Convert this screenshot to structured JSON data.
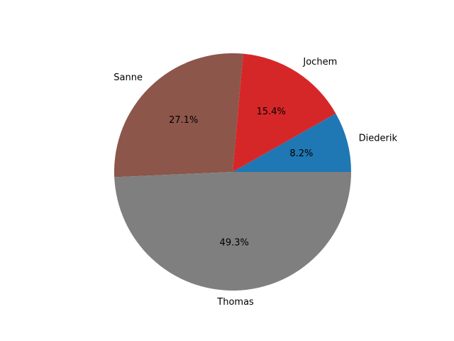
{
  "chart_data": {
    "type": "pie",
    "labels": [
      "Diederik",
      "Jochem",
      "Sanne",
      "Thomas"
    ],
    "values": [
      8.2,
      15.4,
      27.1,
      49.3
    ],
    "percent_labels": [
      "8.2%",
      "15.4%",
      "27.1%",
      "49.3%"
    ],
    "colors": [
      "#1f77b4",
      "#d62728",
      "#8c564b",
      "#7f7f7f"
    ],
    "start_angle_deg": 0,
    "direction": "counterclockwise",
    "title": "",
    "legend": "none"
  }
}
